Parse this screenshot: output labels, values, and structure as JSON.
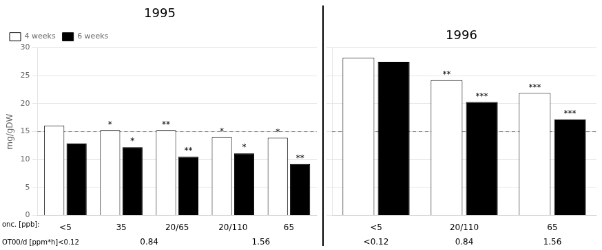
{
  "chart_data": [
    {
      "type": "bar",
      "title": "1995",
      "categories": [
        "<5",
        "35",
        "20/65",
        "20/110",
        "65"
      ],
      "series": [
        {
          "name": "4 weeks",
          "color": "#ffffff",
          "values": [
            16.1,
            15.2,
            15.2,
            14.0,
            13.9
          ],
          "annotations": [
            null,
            "*",
            "**",
            "*",
            "*"
          ]
        },
        {
          "name": "6 weeks",
          "color": "#000000",
          "values": [
            12.9,
            12.2,
            10.5,
            11.1,
            9.2
          ],
          "annotations": [
            null,
            "*",
            "**",
            "*",
            "**"
          ]
        }
      ],
      "ylabel": "mg/gDW",
      "ylim": [
        0,
        30
      ],
      "yticks": [
        0,
        5,
        10,
        15,
        20,
        25,
        30
      ],
      "grid": true,
      "legend": "upper left",
      "reference_line": {
        "value": 15,
        "line_style": "dashed"
      },
      "row_labels": [
        "onc. [ppb]:",
        "OT00/d [ppm*h]<0.12"
      ],
      "second_row": [
        {
          "text": "0.84",
          "categories": [
            "35",
            "20/65"
          ]
        },
        {
          "text": "1.56",
          "categories": [
            "20/110",
            "65"
          ]
        }
      ]
    },
    {
      "type": "bar",
      "title": "1996",
      "categories": [
        "<5",
        "20/110",
        "65"
      ],
      "series": [
        {
          "color": "#ffffff",
          "values": [
            28.2,
            24.2,
            21.9
          ],
          "annotations": [
            null,
            "**",
            "***"
          ]
        },
        {
          "color": "#000000",
          "values": [
            27.5,
            20.3,
            17.2
          ],
          "annotations": [
            null,
            "***",
            "***"
          ]
        }
      ],
      "ylim": [
        0,
        30
      ],
      "yticks": [
        0,
        5,
        10,
        15,
        20,
        25,
        30
      ],
      "grid": true,
      "tick_labels": "x",
      "reference_line": {
        "value": 15,
        "line_style": "dashed"
      },
      "second_row": [
        {
          "text": "<0.12",
          "categories": [
            "<5"
          ]
        },
        {
          "text": "0.84",
          "categories": [
            "20/110"
          ]
        },
        {
          "text": "1.56",
          "categories": [
            "65"
          ]
        }
      ]
    }
  ]
}
